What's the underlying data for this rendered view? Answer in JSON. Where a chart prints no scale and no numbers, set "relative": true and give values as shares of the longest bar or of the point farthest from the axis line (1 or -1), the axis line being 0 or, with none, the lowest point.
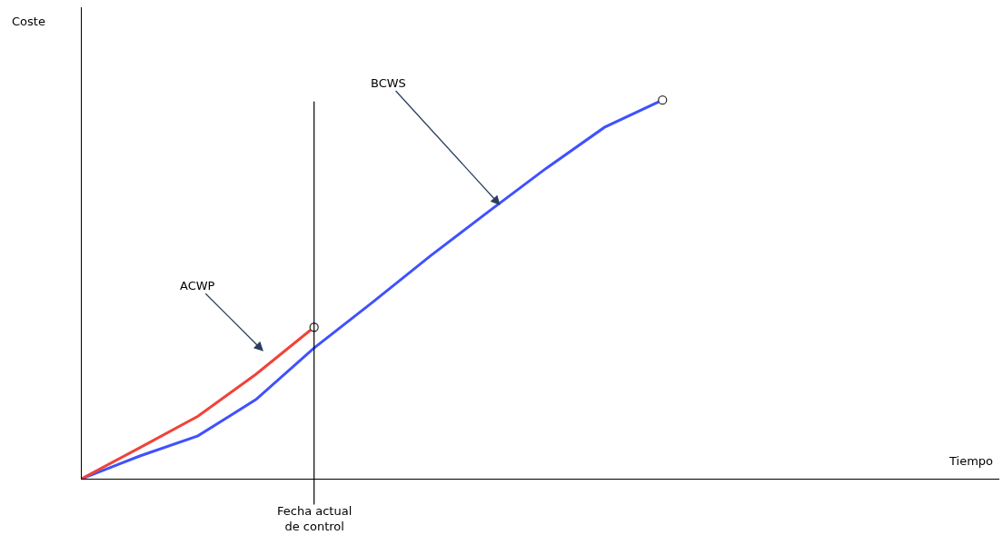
{
  "chart_data": {
    "type": "line",
    "relative": true,
    "categories": [
      null,
      null,
      null,
      null,
      null,
      null,
      null,
      null,
      null,
      null,
      null
    ],
    "series": [
      {
        "color": "#3f51ff",
        "values": [
          0,
          0.06,
          0.113,
          0.209,
          0.345,
          0.465,
          0.588,
          0.705,
          0.82,
          0.928,
          1.0
        ]
      },
      {
        "color": "#f0433a",
        "values": [
          0,
          0.082,
          0.165,
          0.276,
          0.4,
          null,
          null,
          null,
          null,
          null,
          null
        ]
      }
    ],
    "annotations": [
      "Coste",
      "BCWS",
      "ACWP",
      "Tiempo",
      "Fecha actual\nde control"
    ],
    "line_style": "solid"
  }
}
